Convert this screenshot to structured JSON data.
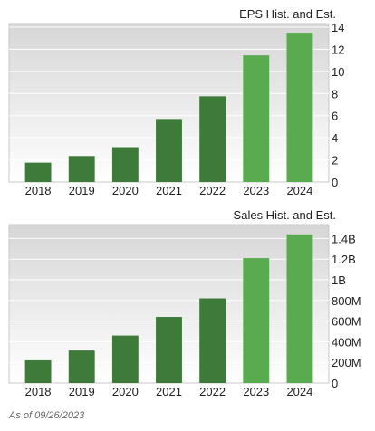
{
  "chart_data": [
    {
      "type": "bar",
      "title": "EPS Hist. and Est.",
      "categories": [
        "2018",
        "2019",
        "2020",
        "2021",
        "2022",
        "2023",
        "2024"
      ],
      "values": [
        1.75,
        2.35,
        3.15,
        5.7,
        7.75,
        11.45,
        13.5
      ],
      "estimate_flags": [
        false,
        false,
        false,
        false,
        false,
        true,
        true
      ],
      "ylim": [
        0,
        14
      ],
      "yticks": [
        0,
        2,
        4,
        6,
        8,
        10,
        12,
        14
      ],
      "ytick_labels": [
        "0",
        "2",
        "4",
        "6",
        "8",
        "10",
        "12",
        "14"
      ],
      "grid": true,
      "colors": {
        "historical": "#3e7b3a",
        "estimate": "#5aaa50"
      }
    },
    {
      "type": "bar",
      "title": "Sales Hist. and Est.",
      "categories": [
        "2018",
        "2019",
        "2020",
        "2021",
        "2022",
        "2023",
        "2024"
      ],
      "values": [
        220000000,
        315000000,
        460000000,
        640000000,
        820000000,
        1210000000,
        1440000000
      ],
      "estimate_flags": [
        false,
        false,
        false,
        false,
        false,
        true,
        true
      ],
      "ylim": [
        0,
        1500000000
      ],
      "yticks": [
        0,
        200000000,
        400000000,
        600000000,
        800000000,
        1000000000,
        1200000000,
        1400000000
      ],
      "ytick_labels": [
        "0",
        "200M",
        "400M",
        "600M",
        "800M",
        "1B",
        "1.2B",
        "1.4B"
      ],
      "grid": true,
      "colors": {
        "historical": "#3e7b3a",
        "estimate": "#5aaa50"
      }
    }
  ],
  "footer": {
    "as_of": "As of 09/26/2023"
  }
}
